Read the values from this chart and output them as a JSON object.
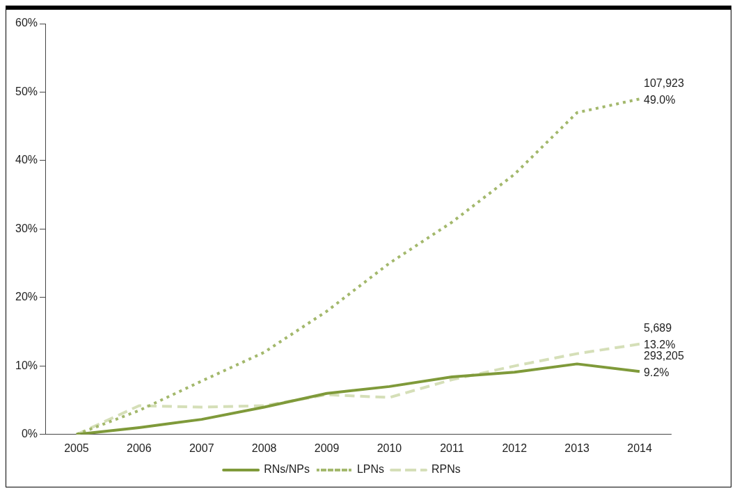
{
  "chart_data": {
    "type": "line",
    "categories": [
      "2005",
      "2006",
      "2007",
      "2008",
      "2009",
      "2010",
      "2011",
      "2012",
      "2013",
      "2014"
    ],
    "series": [
      {
        "name": "RNs/NPs",
        "color": "#7f9a3a",
        "line_style": "solid",
        "values": [
          0,
          1,
          2.2,
          4,
          6,
          7,
          8.4,
          9.1,
          10.3,
          9.2
        ]
      },
      {
        "name": "LPNs",
        "color": "#a3b86c",
        "line_style": "dotted",
        "values": [
          0,
          3.5,
          7.8,
          12,
          18,
          25,
          31,
          38,
          47,
          49
        ]
      },
      {
        "name": "RPNs",
        "color": "#d5dfb8",
        "line_style": "dashed",
        "values": [
          0,
          4.2,
          4,
          4.2,
          5.8,
          5.4,
          8,
          10,
          11.8,
          13.2
        ]
      }
    ],
    "ylim": [
      0,
      60
    ],
    "yticks": [
      {
        "value": 0,
        "label": "0%"
      },
      {
        "value": 10,
        "label": "10%"
      },
      {
        "value": 20,
        "label": "20%"
      },
      {
        "value": 30,
        "label": "30%"
      },
      {
        "value": 40,
        "label": "40%"
      },
      {
        "value": 50,
        "label": "50%"
      },
      {
        "value": 60,
        "label": "60%"
      }
    ],
    "grid": false,
    "legend": "bottom",
    "marker": "none",
    "annotations": [
      {
        "text": "107,923\n49.0%",
        "x": "2014",
        "y": 49
      },
      {
        "text": "5,689\n13.2%",
        "x": "2014",
        "y": 13.2
      },
      {
        "text": "293,205\n9.2%",
        "x": "2014",
        "y": 9.2
      }
    ]
  }
}
